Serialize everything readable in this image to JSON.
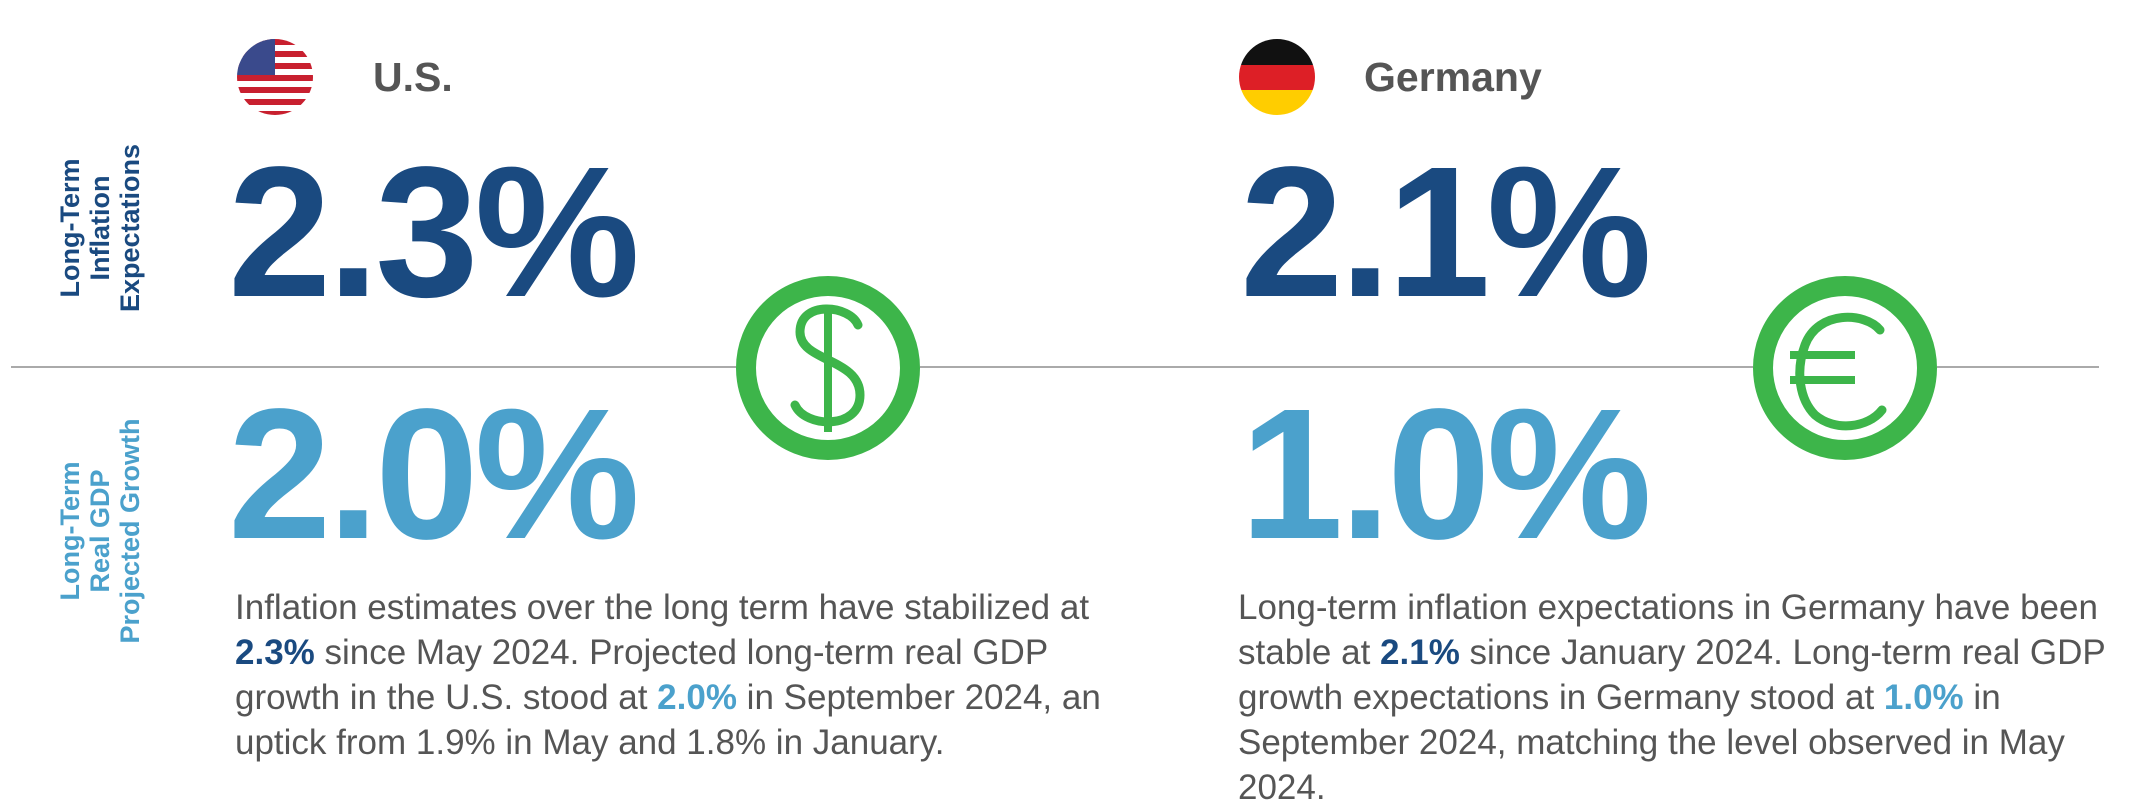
{
  "row_labels": {
    "inflation": [
      "Long-Term",
      "Inflation",
      "Expectations"
    ],
    "gdp": [
      "Long-Term",
      "Real GDP",
      "Projected Growth"
    ]
  },
  "countries": [
    {
      "name": "U.S.",
      "inflation": "2.3%",
      "gdp": "2.0%",
      "description": {
        "text_1": "Inflation estimates over the long term have stabilized at ",
        "inflation": "2.3%",
        "text_2": " since May 2024. Projected long-term real GDP growth in the U.S. stood at ",
        "gdp": "2.0%",
        "text_3": " in September 2024, an uptick from 1.9% in May and 1.8% in January."
      }
    },
    {
      "name": "Germany",
      "inflation": "2.1%",
      "gdp": "1.0%",
      "description": {
        "text_1": "Long-term inflation expectations in Germany have been stable at ",
        "inflation": "2.1%",
        "text_2": " since January 2024. Long-term real GDP growth expectations in Germany stood at ",
        "gdp": "1.0%",
        "text_3": " in September 2024, matching the level observed in May 2024."
      }
    }
  ]
}
